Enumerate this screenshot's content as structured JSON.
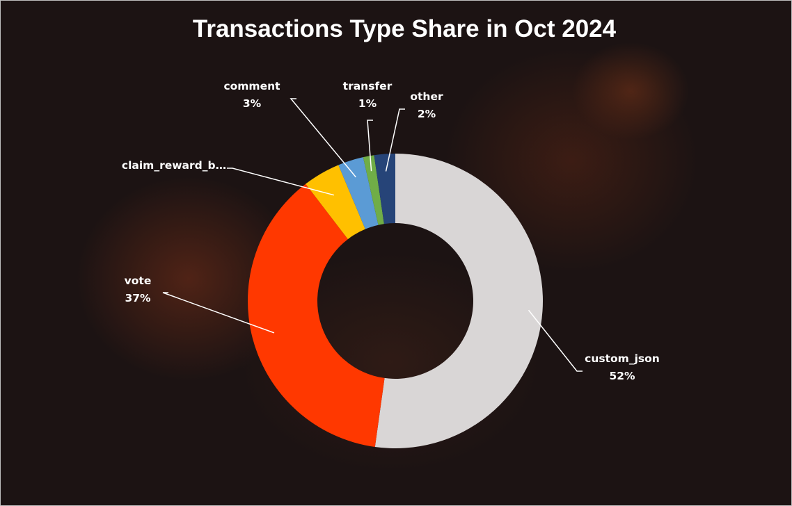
{
  "chart_data": {
    "type": "pie",
    "variant": "donut",
    "title": "Transactions Type Share in Oct 2024",
    "slices": [
      {
        "label": "custom_json",
        "value": 52.2,
        "display": "52%",
        "color": "#d9d6d6"
      },
      {
        "label": "vote",
        "value": 37.4,
        "display": "37%",
        "color": "#ff3800"
      },
      {
        "label": "claim_reward_b…",
        "value": 4.1,
        "display": "",
        "color": "#ffc000"
      },
      {
        "label": "comment",
        "value": 2.8,
        "display": "3%",
        "color": "#5b9bd5"
      },
      {
        "label": "transfer",
        "value": 1.2,
        "display": "1%",
        "color": "#70ad47"
      },
      {
        "label": "other",
        "value": 2.3,
        "display": "2%",
        "color": "#264478"
      }
    ],
    "legend": "none",
    "label_style": "callout with leader lines"
  }
}
